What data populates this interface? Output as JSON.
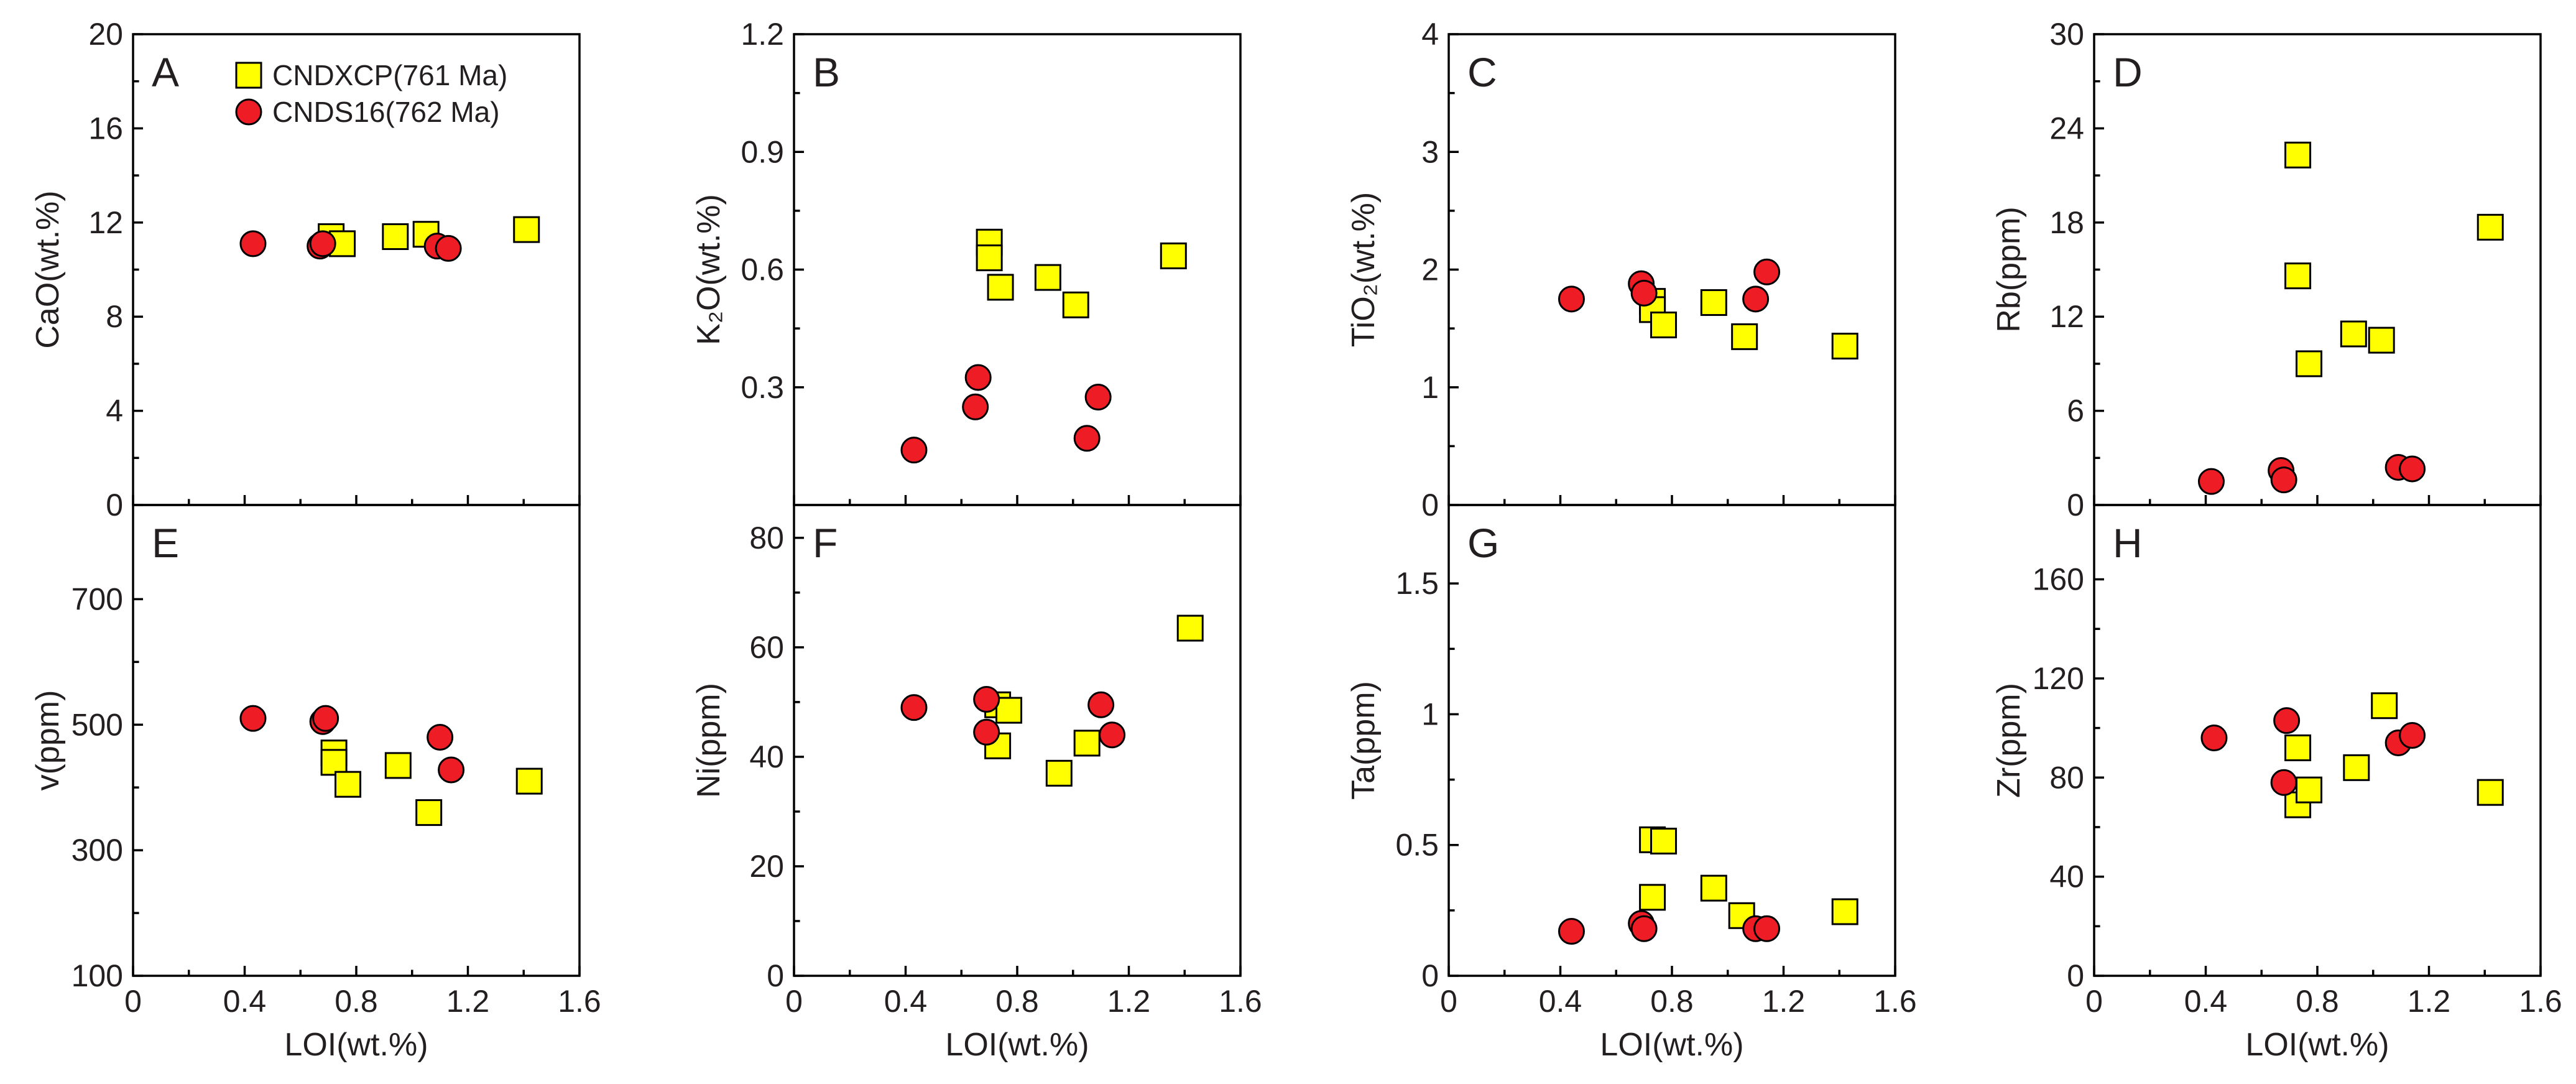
{
  "chart_data": [
    {
      "type": "scatter",
      "panel_label": "A",
      "xlabel": "",
      "ylabel": "CaO(wt.%)",
      "xlim": [
        0,
        1.6
      ],
      "ylim": [
        0,
        20
      ],
      "xticks": [],
      "yticks": [
        "0",
        "4",
        "8",
        "12",
        "16",
        "20"
      ],
      "series": [
        {
          "name": "CNDXCP(761 Ma)",
          "marker": "square",
          "color": "#ffff00",
          "points": [
            [
              0.71,
              11.4
            ],
            [
              0.75,
              11.1
            ],
            [
              0.94,
              11.4
            ],
            [
              1.05,
              11.5
            ],
            [
              1.41,
              11.7
            ]
          ]
        },
        {
          "name": "CNDS16(762 Ma)",
          "marker": "circle",
          "color": "#ee1c25",
          "points": [
            [
              0.43,
              11.1
            ],
            [
              0.67,
              11.0
            ],
            [
              0.68,
              11.1
            ],
            [
              1.09,
              11.0
            ],
            [
              1.13,
              10.9
            ]
          ]
        }
      ]
    },
    {
      "type": "scatter",
      "panel_label": "B",
      "xlabel": "",
      "ylabel": "K₂O(wt.%)",
      "xlim": [
        0,
        1.6
      ],
      "ylim": [
        0,
        1.2
      ],
      "xticks": [],
      "yticks": [
        "0.3",
        "0.6",
        "0.9",
        "1.2"
      ],
      "series": [
        {
          "name": "CNDXCP(761 Ma)",
          "marker": "square",
          "color": "#ffff00",
          "points": [
            [
              0.7,
              0.67
            ],
            [
              0.7,
              0.63
            ],
            [
              0.74,
              0.555
            ],
            [
              0.91,
              0.58
            ],
            [
              1.01,
              0.51
            ],
            [
              1.36,
              0.635
            ]
          ]
        },
        {
          "name": "CNDS16(762 Ma)",
          "marker": "circle",
          "color": "#ee1c25",
          "points": [
            [
              0.43,
              0.14
            ],
            [
              0.65,
              0.25
            ],
            [
              0.66,
              0.325
            ],
            [
              1.05,
              0.17
            ],
            [
              1.09,
              0.275
            ]
          ]
        }
      ]
    },
    {
      "type": "scatter",
      "panel_label": "C",
      "xlabel": "",
      "ylabel": "TiO₂(wt.%)",
      "xlim": [
        0,
        1.6
      ],
      "ylim": [
        0,
        4
      ],
      "xticks": [],
      "yticks": [
        "0",
        "1",
        "2",
        "3",
        "4"
      ],
      "series": [
        {
          "name": "CNDXCP(761 Ma)",
          "marker": "square",
          "color": "#ffff00",
          "points": [
            [
              0.73,
              1.73
            ],
            [
              0.73,
              1.66
            ],
            [
              0.77,
              1.53
            ],
            [
              0.95,
              1.72
            ],
            [
              1.06,
              1.43
            ],
            [
              1.42,
              1.35
            ]
          ]
        },
        {
          "name": "CNDS16(762 Ma)",
          "marker": "circle",
          "color": "#ee1c25",
          "points": [
            [
              0.44,
              1.75
            ],
            [
              0.69,
              1.88
            ],
            [
              0.7,
              1.8
            ],
            [
              1.1,
              1.75
            ],
            [
              1.14,
              1.98
            ]
          ]
        }
      ]
    },
    {
      "type": "scatter",
      "panel_label": "D",
      "xlabel": "",
      "ylabel": "Rb(ppm)",
      "xlim": [
        0,
        1.6
      ],
      "ylim": [
        0,
        30
      ],
      "xticks": [],
      "yticks": [
        "0",
        "6",
        "12",
        "18",
        "24",
        "30"
      ],
      "series": [
        {
          "name": "CNDXCP(761 Ma)",
          "marker": "square",
          "color": "#ffff00",
          "points": [
            [
              0.73,
              22.3
            ],
            [
              0.73,
              14.6
            ],
            [
              0.77,
              9.0
            ],
            [
              0.93,
              10.9
            ],
            [
              1.03,
              10.5
            ],
            [
              1.42,
              17.7
            ]
          ]
        },
        {
          "name": "CNDS16(762 Ma)",
          "marker": "circle",
          "color": "#ee1c25",
          "points": [
            [
              0.42,
              1.5
            ],
            [
              0.67,
              2.2
            ],
            [
              0.68,
              1.6
            ],
            [
              1.09,
              2.4
            ],
            [
              1.14,
              2.3
            ]
          ]
        }
      ]
    },
    {
      "type": "scatter",
      "panel_label": "E",
      "xlabel": "LOI(wt.%)",
      "ylabel": "v(ppm)",
      "xlim": [
        0,
        1.6
      ],
      "ylim": [
        100,
        850
      ],
      "xticks": [
        "0",
        "0.4",
        "0.8",
        "1.2",
        "1.6"
      ],
      "yticks": [
        "100",
        "300",
        "500",
        "700"
      ],
      "series": [
        {
          "name": "CNDXCP(761 Ma)",
          "marker": "square",
          "color": "#ffff00",
          "points": [
            [
              0.72,
              455
            ],
            [
              0.72,
              440
            ],
            [
              0.77,
              405
            ],
            [
              0.95,
              435
            ],
            [
              1.06,
              360
            ],
            [
              1.42,
              410
            ]
          ]
        },
        {
          "name": "CNDS16(762 Ma)",
          "marker": "circle",
          "color": "#ee1c25",
          "points": [
            [
              0.43,
              510
            ],
            [
              0.68,
              505
            ],
            [
              0.69,
              510
            ],
            [
              1.1,
              480
            ],
            [
              1.14,
              428
            ]
          ]
        }
      ]
    },
    {
      "type": "scatter",
      "panel_label": "F",
      "xlabel": "LOI(wt.%)",
      "ylabel": "Ni(ppm)",
      "xlim": [
        0,
        1.6
      ],
      "ylim": [
        0,
        86
      ],
      "xticks": [
        "0",
        "0.4",
        "0.8",
        "1.2",
        "1.6"
      ],
      "yticks": [
        "0",
        "20",
        "40",
        "60",
        "80"
      ],
      "series": [
        {
          "name": "CNDXCP(761 Ma)",
          "marker": "square",
          "color": "#ffff00",
          "points": [
            [
              0.73,
              49.5
            ],
            [
              0.77,
              48.5
            ],
            [
              0.73,
              42
            ],
            [
              0.95,
              37
            ],
            [
              1.05,
              42.5
            ],
            [
              1.42,
              63.5
            ]
          ]
        },
        {
          "name": "CNDS16(762 Ma)",
          "marker": "circle",
          "color": "#ee1c25",
          "points": [
            [
              0.43,
              49
            ],
            [
              0.69,
              50.5
            ],
            [
              0.69,
              44.5
            ],
            [
              1.1,
              49.5
            ],
            [
              1.14,
              44
            ]
          ]
        }
      ]
    },
    {
      "type": "scatter",
      "panel_label": "G",
      "xlabel": "LOI(wt.%)",
      "ylabel": "Ta(ppm)",
      "xlim": [
        0,
        1.6
      ],
      "ylim": [
        0,
        1.8
      ],
      "xticks": [
        "0",
        "0.4",
        "0.8",
        "1.2",
        "1.6"
      ],
      "yticks": [
        "0",
        "0.5",
        "1",
        "1.5"
      ],
      "series": [
        {
          "name": "CNDXCP(761 Ma)",
          "marker": "square",
          "color": "#ffff00",
          "points": [
            [
              0.73,
              0.52
            ],
            [
              0.77,
              0.515
            ],
            [
              0.73,
              0.3
            ],
            [
              0.95,
              0.335
            ],
            [
              1.05,
              0.23
            ],
            [
              1.42,
              0.245
            ]
          ]
        },
        {
          "name": "CNDS16(762 Ma)",
          "marker": "circle",
          "color": "#ee1c25",
          "points": [
            [
              0.44,
              0.17
            ],
            [
              0.69,
              0.2
            ],
            [
              0.7,
              0.18
            ],
            [
              1.1,
              0.18
            ],
            [
              1.14,
              0.18
            ]
          ]
        }
      ]
    },
    {
      "type": "scatter",
      "panel_label": "H",
      "xlabel": "LOI(wt.%)",
      "ylabel": "Zr(ppm)",
      "xlim": [
        0,
        1.6
      ],
      "ylim": [
        0,
        190
      ],
      "xticks": [
        "0",
        "0.4",
        "0.8",
        "1.2",
        "1.6"
      ],
      "yticks": [
        "0",
        "40",
        "80",
        "120",
        "160"
      ],
      "series": [
        {
          "name": "CNDXCP(761 Ma)",
          "marker": "square",
          "color": "#ffff00",
          "points": [
            [
              0.73,
              92
            ],
            [
              0.73,
              69
            ],
            [
              0.77,
              75
            ],
            [
              0.94,
              84
            ],
            [
              1.04,
              109
            ],
            [
              1.42,
              74
            ]
          ]
        },
        {
          "name": "CNDS16(762 Ma)",
          "marker": "circle",
          "color": "#ee1c25",
          "points": [
            [
              0.43,
              96
            ],
            [
              0.69,
              103
            ],
            [
              0.68,
              78
            ],
            [
              1.09,
              94
            ],
            [
              1.14,
              97
            ]
          ]
        }
      ]
    }
  ],
  "legend": {
    "placement": "inside panel A, top",
    "items": [
      {
        "label": "CNDXCP(761 Ma)",
        "marker": "square",
        "color": "#ffff00"
      },
      {
        "label": "CNDS16(762 Ma)",
        "marker": "circle",
        "color": "#ee1c25"
      }
    ]
  }
}
